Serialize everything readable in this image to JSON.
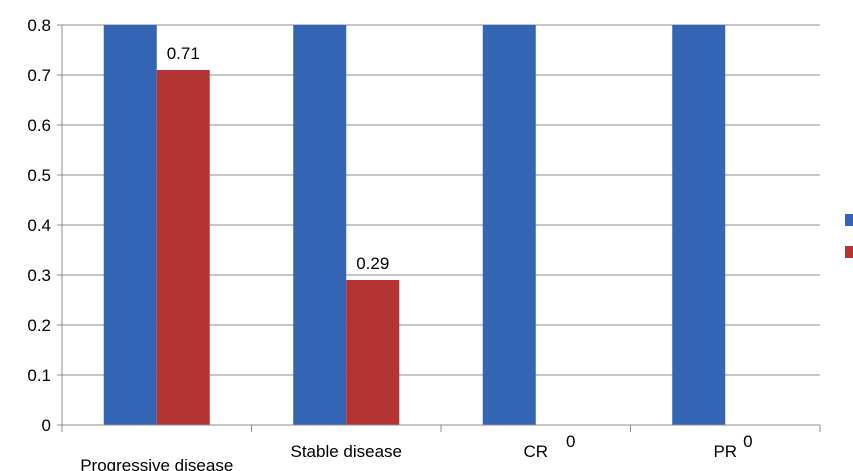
{
  "chart_data": {
    "type": "bar",
    "categories": [
      "Progressive disease",
      "Stable disease",
      "CR",
      "PR"
    ],
    "series": [
      {
        "values": [
          1.0,
          1.0,
          1.0,
          1.0
        ],
        "color": "#3464b4"
      },
      {
        "values": [
          0.71,
          0.29,
          0,
          0
        ],
        "color": "#b43434"
      }
    ],
    "data_labels": [
      "0.71",
      "0.29",
      "0",
      "0"
    ],
    "yticks": [
      "0",
      "0.1",
      "0.2",
      "0.3",
      "0.4",
      "0.5",
      "0.6",
      "0.7",
      "0.8"
    ],
    "ylim": [
      0,
      0.8
    ],
    "grid": true,
    "legend": "right",
    "title": "",
    "xlabel": "",
    "ylabel": ""
  }
}
